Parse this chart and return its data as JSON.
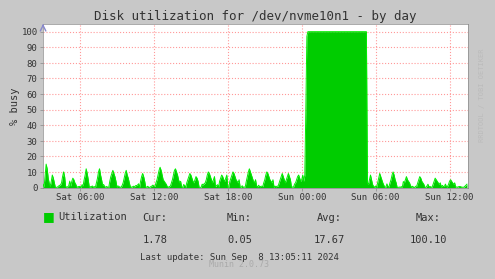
{
  "title": "Disk utilization for /dev/nvme10n1 - by day",
  "ylabel": "% busy",
  "line_color": "#00EE00",
  "fill_color": "#00CC00",
  "bg_color": "#C8C8C8",
  "plot_bg_color": "#FFFFFF",
  "grid_color": "#FF9999",
  "font_color": "#333333",
  "font_family": "monospace",
  "legend_label": "Utilization",
  "legend_color": "#00CC00",
  "stats_cur_label": "Cur:",
  "stats_min_label": "Min:",
  "stats_avg_label": "Avg:",
  "stats_max_label": "Max:",
  "stats_cur": "1.78",
  "stats_min": "0.05",
  "stats_avg": "17.67",
  "stats_max": "100.10",
  "last_update": "Last update: Sun Sep  8 13:05:11 2024",
  "munin_version": "Munin 2.0.73",
  "rrdtool_label": "RRDTOOL / TOBI OETIKER",
  "x_tick_labels": [
    "Sat 06:00",
    "Sat 12:00",
    "Sat 18:00",
    "Sun 00:00",
    "Sun 06:00",
    "Sun 12:00"
  ],
  "ylim": [
    0,
    100
  ],
  "arrow_color": "#8888CC"
}
